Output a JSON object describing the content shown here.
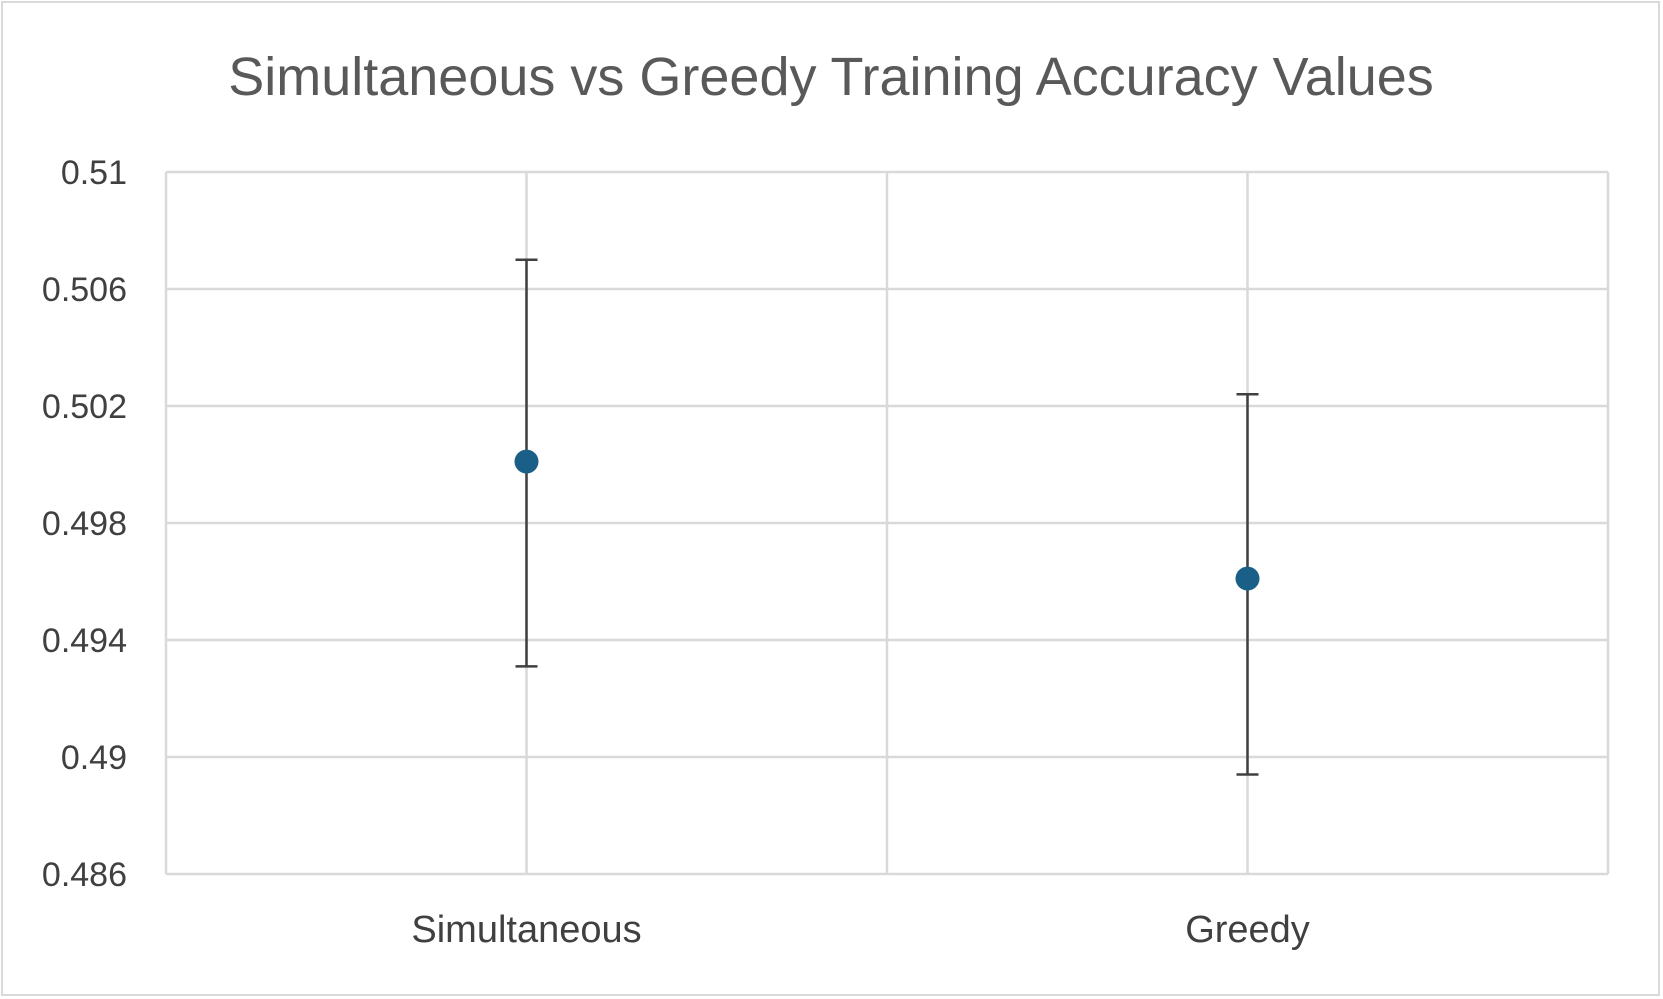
{
  "chart_data": {
    "type": "scatter",
    "title": "Simultaneous vs Greedy Training Accuracy Values",
    "xlabel": "",
    "ylabel": "",
    "categories": [
      "Simultaneous",
      "Greedy"
    ],
    "series": [
      {
        "values": [
          0.5001,
          0.4961
        ],
        "error_upper": [
          0.507,
          0.5024
        ],
        "error_lower": [
          0.4931,
          0.4894
        ],
        "color": "#1a5f87"
      }
    ],
    "ylim": [
      0.486,
      0.51
    ],
    "y_ticks": [
      "0.486",
      "0.49",
      "0.494",
      "0.498",
      "0.502",
      "0.506",
      "0.51"
    ],
    "grid": true,
    "legend": "none"
  },
  "colors": {
    "marker": "#1a5f87",
    "grid": "#d9d9d9",
    "error_bar": "#404040",
    "text": "#404040",
    "title": "#595959"
  }
}
